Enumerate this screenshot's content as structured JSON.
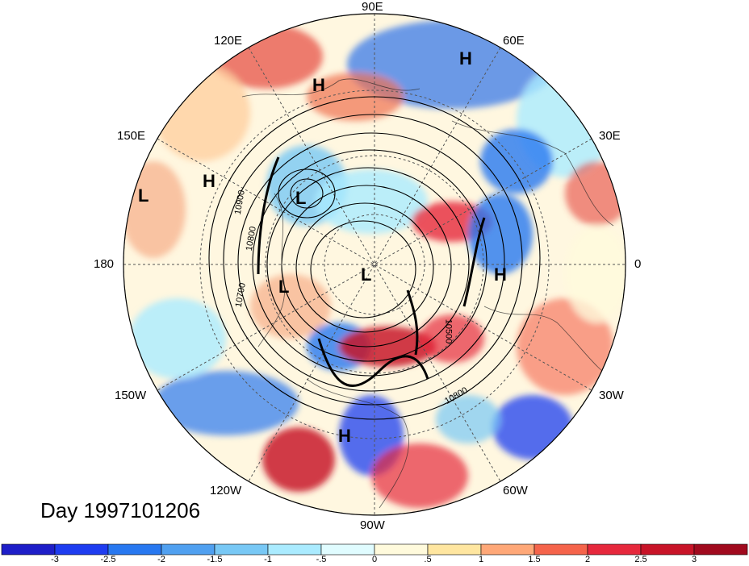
{
  "title_text": "Day 1997101206",
  "longitude_labels": [
    "90E",
    "60E",
    "120E",
    "30E",
    "150E",
    "0",
    "180",
    "30W",
    "150W",
    "60W",
    "120W",
    "90W"
  ],
  "pressure_centers": [
    "H",
    "H",
    "H",
    "H",
    "L",
    "L",
    "L",
    "L",
    "H"
  ],
  "contour_labels": [
    "10900",
    "10800",
    "10700",
    "10500",
    "10800"
  ],
  "colorbar": {
    "ticks": [
      "-3",
      "-2.5",
      "-2",
      "-1.5",
      "-1",
      "-.5",
      "0",
      ".5",
      "1",
      "1.5",
      "2",
      "2.5",
      "3"
    ],
    "colors": [
      "#1e1ec8",
      "#1e3cf0",
      "#2878f0",
      "#50a0f0",
      "#78c8f5",
      "#aaebff",
      "#e0fcff",
      "#fffadc",
      "#ffe6a0",
      "#ffa878",
      "#f5644b",
      "#e6283c",
      "#c81428",
      "#a00a1e"
    ]
  }
}
